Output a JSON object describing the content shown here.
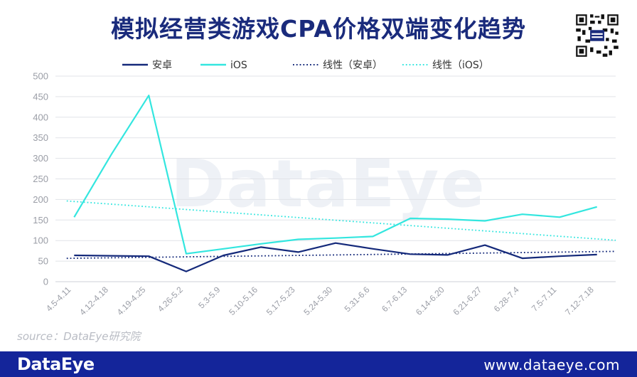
{
  "page": {
    "title": "模拟经营类游戏CPA价格双端变化趋势",
    "source": "source：DataEye研究院",
    "watermark": "DataEye",
    "footer_brand": "DataEye",
    "footer_site": "www.dataeye.com",
    "colors": {
      "title": "#1a2b7c",
      "android": "#14297a",
      "ios": "#33e6df",
      "footer": "#14259a",
      "grid": "#e1e3e8",
      "axis_text": "#9a9da6"
    }
  },
  "chart_data": {
    "type": "line",
    "title": "模拟经营类游戏CPA价格双端变化趋势",
    "xlabel": "",
    "ylabel": "",
    "ylim": [
      0,
      500
    ],
    "yticks": [
      0,
      50,
      100,
      150,
      200,
      250,
      300,
      350,
      400,
      450,
      500
    ],
    "grid": true,
    "legend_position": "top",
    "categories": [
      "4.5-4.11",
      "4.12-4.18",
      "4.19-4.25",
      "4.26-5.2",
      "5.3-5.9",
      "5.10-5.16",
      "5.17-5.23",
      "5.24-5.30",
      "5.31-6.6",
      "6.7-6.13",
      "6.14-6.20",
      "6.21-6.27",
      "6.28-7.4",
      "7.5-7.11",
      "7.12-7.18"
    ],
    "series": [
      {
        "name": "安卓",
        "style": "solid",
        "color": "#14297a",
        "values": [
          64,
          63,
          62,
          25,
          64,
          84,
          72,
          94,
          80,
          67,
          65,
          89,
          57,
          62,
          66
        ]
      },
      {
        "name": "iOS",
        "style": "solid",
        "color": "#33e6df",
        "values": [
          157,
          310,
          453,
          68,
          80,
          92,
          103,
          106,
          110,
          154,
          152,
          148,
          164,
          157,
          182
        ]
      },
      {
        "name": "线性（安卓）",
        "style": "dotted",
        "color": "#14297a",
        "values": [
          57,
          58.2,
          59.3,
          60.5,
          61.6,
          62.8,
          63.9,
          65.1,
          66.2,
          67.4,
          68.5,
          69.7,
          70.8,
          72,
          73.1
        ]
      },
      {
        "name": "线性（iOS）",
        "style": "dotted",
        "color": "#33e6df",
        "values": [
          195,
          188.5,
          182,
          175.5,
          169,
          162.5,
          156,
          149.5,
          143,
          136.5,
          130,
          123.5,
          117,
          110.5,
          104
        ]
      }
    ]
  }
}
